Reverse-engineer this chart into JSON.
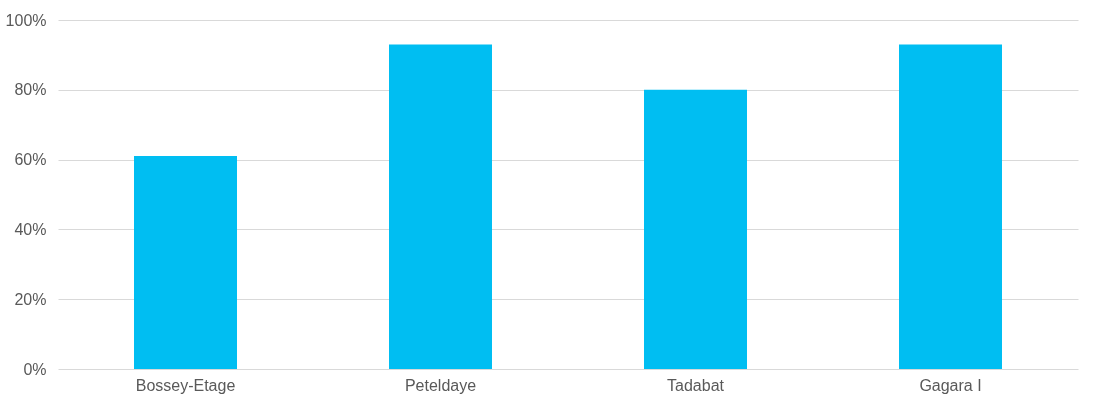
{
  "chart_data": {
    "type": "bar",
    "categories": [
      "Bossey-Etage",
      "Peteldaye",
      "Tadabat",
      "Gagara I"
    ],
    "values": [
      61,
      93,
      80,
      93
    ],
    "color": "#00bef2",
    "ylim": [
      0,
      100
    ],
    "yticks": [
      {
        "value": 0,
        "label": "0%"
      },
      {
        "value": 20,
        "label": "20%"
      },
      {
        "value": 40,
        "label": "40%"
      },
      {
        "value": 60,
        "label": "60%"
      },
      {
        "value": 80,
        "label": "80%"
      },
      {
        "value": 100,
        "label": "100%"
      }
    ],
    "grid": "y"
  }
}
